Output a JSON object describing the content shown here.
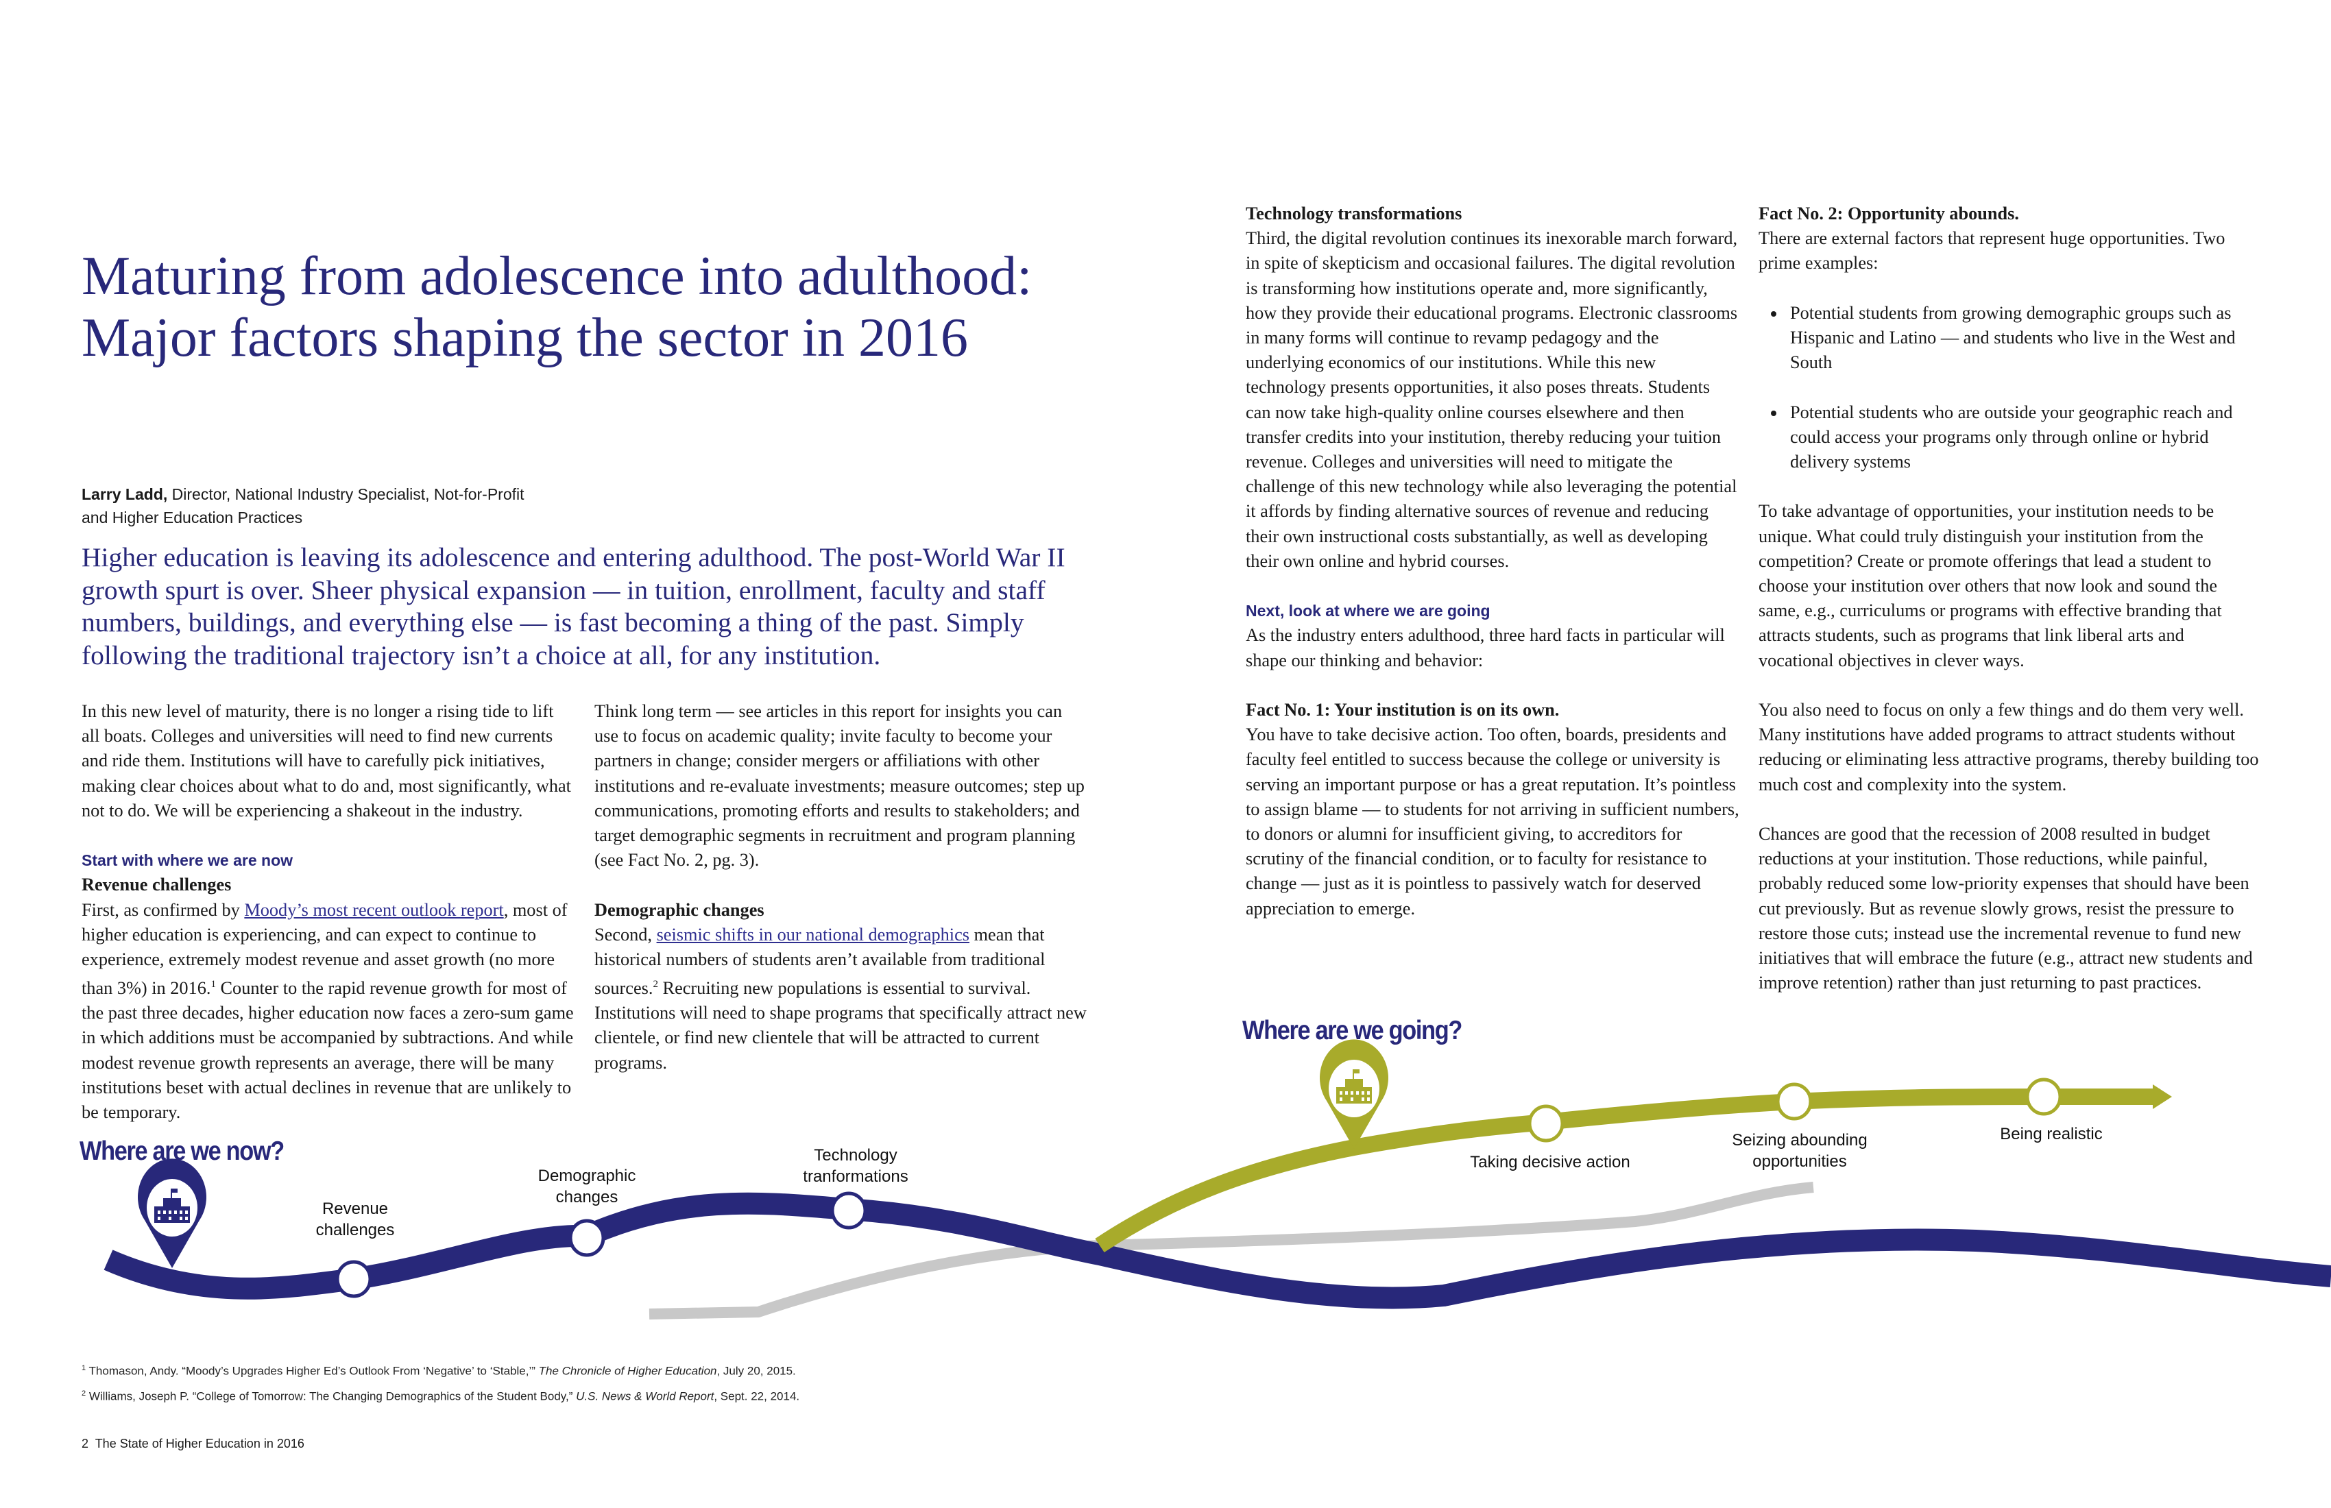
{
  "title": {
    "line1": "Maturing from adolescence into adulthood:",
    "line2": "Major factors shaping the sector in 2016"
  },
  "author": {
    "name": "Larry Ladd,",
    "role_line1": " Director, National Industry Specialist, Not-for-Profit",
    "role_line2": "and Higher Education Practices"
  },
  "lead": "Higher education is leaving its adolescence and entering adulthood. The post-World War II growth spurt is over. Sheer physical expansion — in tuition, enrollment, faculty and staff numbers, buildings, and everything else — is fast becoming a thing of the past. Simply following the traditional trajectory isn’t a choice at all, for any institution.",
  "col1": {
    "intro": "In this new level of maturity, there is no longer a rising tide to lift all boats. Colleges and universities will need to find new currents and ride them. Institutions will have to carefully pick initiatives, making clear choices about what to do and, most significantly, what not to do. We will be experiencing a shakeout in the industry.",
    "section_heading": "Start with where we are now",
    "revenue_heading": "Revenue challenges",
    "revenue_pre": "First, as confirmed by ",
    "revenue_link": "Moody’s most recent outlook report",
    "revenue_mid": ", most of higher education is experiencing, and can expect to continue to experience, extremely modest revenue and asset growth (no more than 3%) in 2016.",
    "revenue_fn": "1",
    "revenue_post": " Counter to the rapid revenue growth for most of the past three decades, higher education now faces a zero-sum game in which additions must be accompanied by subtractions. And while modest revenue growth represents an average, there will be many institutions beset with actual declines in revenue that are unlikely to be temporary."
  },
  "col2": {
    "think": "Think long term — see articles in this report for insights you can use to focus on academic quality; invite faculty to become your partners in change; consider mergers or affiliations with other institutions and re-evaluate investments; measure outcomes; step up communications, promoting efforts and results to stakeholders; and target demographic segments in recruitment and program planning (see Fact No. 2, pg. 3).",
    "demo_heading": "Demographic changes",
    "demo_pre": "Second, ",
    "demo_link": "seismic shifts in our national demographics",
    "demo_mid": " mean that historical numbers of students aren’t available from traditional sources.",
    "demo_fn": "2",
    "demo_post": " Recruiting new populations is essential to survival. Institutions will need to shape programs that specifically attract new clientele, or find new clientele that will be attracted to current programs."
  },
  "col3": {
    "tech_heading": "Technology transformations",
    "tech_body": "Third, the digital revolution continues its inexorable march forward, in spite of skepticism and occasional failures. The digital revolution is transforming how institutions operate and, more significantly, how they provide their educational programs. Electronic classrooms in many forms will continue to revamp pedagogy and the underlying economics of our institutions. While this new technology presents opportunities, it also poses threats. Students can now take high-quality online courses elsewhere and then transfer credits into your institution, thereby reducing your tuition revenue. Colleges and universities will need to mitigate the challenge of this new technology while also leveraging the potential it affords by finding alternative sources of revenue and reducing their own instructional costs substantially, as well as developing their own online and hybrid courses.",
    "next_heading": "Next, look at where we are going",
    "next_body": "As the industry enters adulthood, three hard facts in particular will shape our thinking and behavior:",
    "fact1_heading": "Fact No. 1: Your institution is on its own.",
    "fact1_body": "You have to take decisive action. Too often, boards, presidents and faculty feel entitled to success because the college or university is serving an important purpose or has a great reputation. It’s pointless to assign blame — to students for not arriving in sufficient numbers, to donors or alumni for insufficient giving, to accreditors for scrutiny of the financial condition, or to faculty for resistance to change — just as it is pointless to passively watch for deserved appreciation to emerge."
  },
  "col4": {
    "fact2_heading": "Fact No. 2: Opportunity abounds.",
    "fact2_body": "There are external factors that represent huge opportunities. Two prime examples:",
    "bullets": [
      "Potential students from growing demographic groups such as Hispanic and Latino — and students who live in the West and South",
      "Potential students who are outside your geographic reach and could access your programs only through online or hybrid delivery systems"
    ],
    "para1": "To take advantage of opportunities, your institution needs to be unique. What could truly distinguish your institution from the competition? Create or promote offerings that lead a student to choose your institution over others that now look and sound the same, e.g., curriculums or programs with effective branding that attracts students, such as programs that link liberal arts and vocational objectives in clever ways.",
    "para2": "You also need to focus on only a few things and do them very well. Many institutions have added programs to attract students without reducing or eliminating less attractive programs, thereby building too much cost and complexity into the system.",
    "para3": "Chances are good that the recession of 2008 resulted in budget reductions at your institution. Those reductions, while painful, probably reduced some low-priority expenses that should have been cut previously. But as revenue slowly grows, resist the pressure to restore those cuts; instead use the incremental revenue to fund new initiatives that will embrace the future (e.g., attract new students and improve retention) rather than just returning to past practices."
  },
  "timeline": {
    "now_heading": "Where are we now?",
    "going_heading": "Where are we going?",
    "now_stops": [
      {
        "line1": "Revenue",
        "line2": "challenges"
      },
      {
        "line1": "Demographic",
        "line2": "changes"
      },
      {
        "line1": "Technology",
        "line2": "tranformations"
      }
    ],
    "going_stops": [
      {
        "line1": "Taking decisive action",
        "line2": ""
      },
      {
        "line1": "Seizing abounding",
        "line2": "opportunities"
      },
      {
        "line1": "Being realistic",
        "line2": ""
      }
    ],
    "icons": [
      "building-pin-icon",
      "building-pin-icon"
    ],
    "colors": {
      "now": "#28287a",
      "going": "#a8ab2b",
      "shadow": "#c8c8c8"
    }
  },
  "footnotes": [
    {
      "num": "1",
      "pre": " Thomason, Andy. “Moody’s Upgrades Higher Ed’s Outlook From ‘Negative’ to ‘Stable,’” ",
      "source": "The Chronicle of Higher Education",
      "post": ", July 20, 2015."
    },
    {
      "num": "2",
      "pre": " Williams, Joseph P. “College of Tomorrow: The Changing Demographics of the Student Body,” ",
      "source": "U.S. News & World Report",
      "post": ", Sept. 22, 2014."
    }
  ],
  "page_footer": "2  The State of Higher Education in 2016"
}
